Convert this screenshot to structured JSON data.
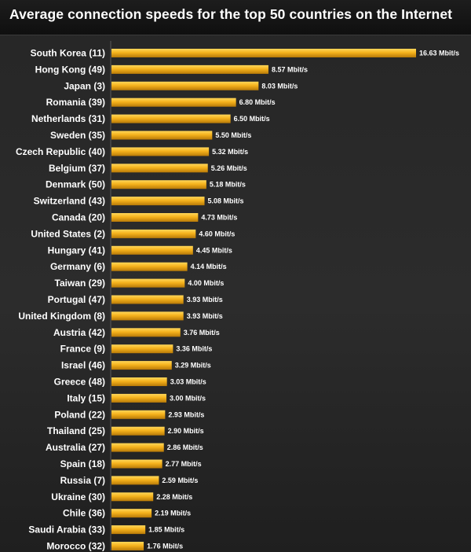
{
  "title": "Average connection speeds for the top 50 countries on the Internet",
  "colors": {
    "bar_light": "#ffd75a",
    "bar_mid": "#f5b21c",
    "bar_dark": "#b87a08",
    "background": "#2a2a2a",
    "text": "#ffffff"
  },
  "chart_data": {
    "type": "bar",
    "orientation": "horizontal",
    "title": "Average connection speeds for the top 50 countries on the Internet",
    "xlabel": "",
    "ylabel": "",
    "unit": "Mbit/s",
    "grid": false,
    "legend": "none",
    "xlim": [
      0,
      16.63
    ],
    "categories": [
      "South Korea (11)",
      "Hong Kong (49)",
      "Japan (3)",
      "Romania (39)",
      "Netherlands (31)",
      "Sweden (35)",
      "Czech Republic (40)",
      "Belgium (37)",
      "Denmark (50)",
      "Switzerland (43)",
      "Canada (20)",
      "United States (2)",
      "Hungary (41)",
      "Germany (6)",
      "Taiwan (29)",
      "Portugal (47)",
      "United Kingdom (8)",
      "Austria (42)",
      "France (9)",
      "Israel (46)",
      "Greece (48)",
      "Italy (15)",
      "Poland (22)",
      "Thailand (25)",
      "Australia (27)",
      "Spain (18)",
      "Russia (7)",
      "Ukraine (30)",
      "Chile (36)",
      "Saudi Arabia (33)",
      "Morocco (32)"
    ],
    "values": [
      16.63,
      8.57,
      8.03,
      6.8,
      6.5,
      5.5,
      5.32,
      5.26,
      5.18,
      5.08,
      4.73,
      4.6,
      4.45,
      4.14,
      4.0,
      3.93,
      3.93,
      3.76,
      3.36,
      3.29,
      3.03,
      3.0,
      2.93,
      2.9,
      2.86,
      2.77,
      2.59,
      2.28,
      2.19,
      1.85,
      1.76
    ],
    "value_labels": [
      "16.63 Mbit/s",
      "8.57 Mbit/s",
      "8.03 Mbit/s",
      "6.80 Mbit/s",
      "6.50 Mbit/s",
      "5.50 Mbit/s",
      "5.32 Mbit/s",
      "5.26 Mbit/s",
      "5.18 Mbit/s",
      "5.08 Mbit/s",
      "4.73 Mbit/s",
      "4.60 Mbit/s",
      "4.45 Mbit/s",
      "4.14 Mbit/s",
      "4.00 Mbit/s",
      "3.93 Mbit/s",
      "3.93 Mbit/s",
      "3.76 Mbit/s",
      "3.36 Mbit/s",
      "3.29 Mbit/s",
      "3.03 Mbit/s",
      "3.00 Mbit/s",
      "2.93 Mbit/s",
      "2.90 Mbit/s",
      "2.86 Mbit/s",
      "2.77 Mbit/s",
      "2.59 Mbit/s",
      "2.28 Mbit/s",
      "2.19 Mbit/s",
      "1.85 Mbit/s",
      "1.76 Mbit/s"
    ]
  }
}
